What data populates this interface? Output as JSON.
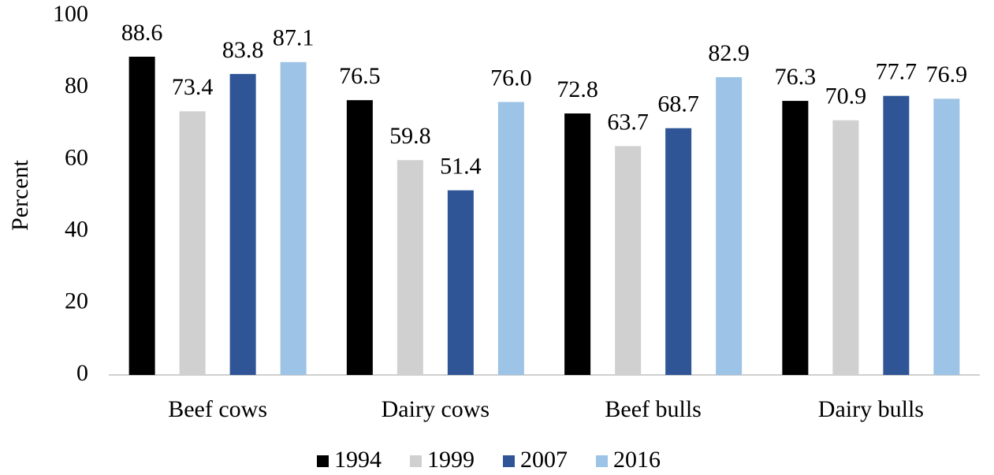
{
  "chart_data": {
    "type": "bar",
    "categories": [
      "Beef cows",
      "Dairy cows",
      "Beef bulls",
      "Dairy bulls"
    ],
    "y_label": "Percent",
    "series": [
      {
        "name": "1994",
        "color": "#000000",
        "values": [
          88.6,
          76.5,
          72.8,
          76.3
        ],
        "value_labels": [
          "88.6",
          "76.5",
          "72.8",
          "76.3"
        ]
      },
      {
        "name": "1999",
        "color": "#d0d0d0",
        "values": [
          73.4,
          59.8,
          63.7,
          70.9
        ],
        "value_labels": [
          "73.4",
          "59.8",
          "63.7",
          "70.9"
        ]
      },
      {
        "name": "2007",
        "color": "#2f5597",
        "values": [
          83.8,
          51.4,
          68.7,
          77.7
        ],
        "value_labels": [
          "83.8",
          "51.4",
          "68.7",
          "77.7"
        ]
      },
      {
        "name": "2016",
        "color": "#9dc3e6",
        "values": [
          87.1,
          76.0,
          82.9,
          76.9
        ],
        "value_labels": [
          "87.1",
          "76.0",
          "82.9",
          "76.9"
        ]
      }
    ],
    "ylim": [
      0,
      100
    ],
    "yticks": [
      0,
      20,
      40,
      60,
      80,
      100
    ],
    "grid": false,
    "legend": "bottom"
  }
}
